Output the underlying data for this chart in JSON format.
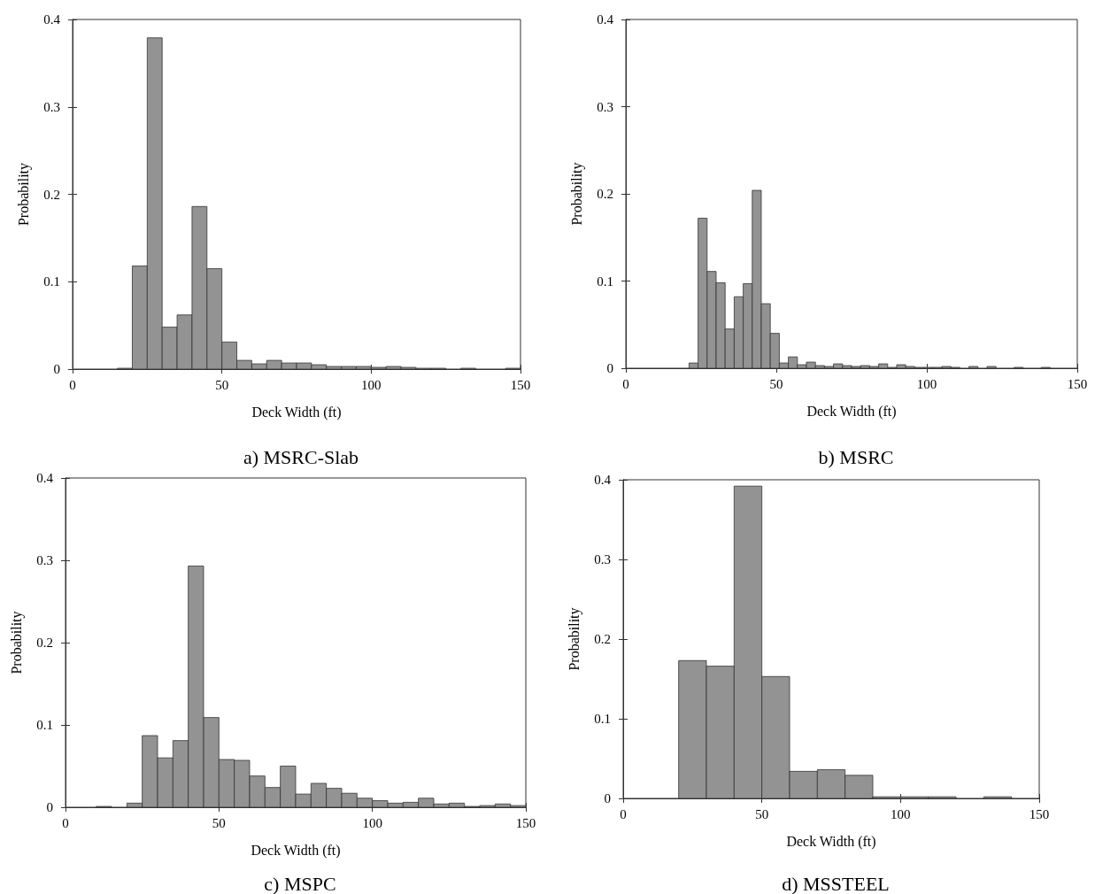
{
  "chart_data": [
    {
      "type": "histogram",
      "title": "a) MSRC-Slab",
      "xlabel": "Deck Width (ft)",
      "ylabel": "Probability",
      "color": "#939393",
      "xlim": [
        0,
        150
      ],
      "ylim": [
        0,
        0.4
      ],
      "xticks": [
        0,
        50,
        100,
        150
      ],
      "yticks": [
        0,
        0.1,
        0.2,
        0.3,
        0.4
      ],
      "bins": [
        15,
        20,
        25,
        30,
        35,
        40,
        45,
        50,
        55,
        60,
        65,
        70,
        75,
        80,
        85,
        90,
        95,
        100,
        105,
        110,
        115,
        120,
        125,
        130,
        135,
        140,
        145,
        150
      ],
      "values": [
        0.001,
        0.118,
        0.379,
        0.048,
        0.062,
        0.186,
        0.115,
        0.031,
        0.01,
        0.006,
        0.01,
        0.007,
        0.007,
        0.005,
        0.003,
        0.003,
        0.003,
        0.002,
        0.003,
        0.002,
        0.001,
        0.001,
        0,
        0.001,
        0,
        0,
        0.001
      ]
    },
    {
      "type": "histogram",
      "title": "b) MSRC",
      "xlabel": "Deck Width (ft)",
      "ylabel": "Probability",
      "color": "#939393",
      "xlim": [
        0,
        150
      ],
      "ylim": [
        0,
        0.4
      ],
      "xticks": [
        0,
        50,
        100,
        150
      ],
      "yticks": [
        0,
        0.1,
        0.2,
        0.3,
        0.4
      ],
      "bins": [
        21,
        24,
        27,
        30,
        33,
        36,
        39,
        42,
        45,
        48,
        51,
        54,
        57,
        60,
        63,
        66,
        69,
        72,
        75,
        78,
        81,
        84,
        87,
        90,
        93,
        96,
        99,
        102,
        105,
        108,
        111,
        114,
        117,
        120,
        123,
        126,
        129,
        132,
        135,
        138,
        141
      ],
      "values": [
        0.006,
        0.172,
        0.111,
        0.098,
        0.045,
        0.082,
        0.097,
        0.204,
        0.074,
        0.04,
        0.006,
        0.013,
        0.004,
        0.007,
        0.003,
        0.002,
        0.005,
        0.003,
        0.002,
        0.003,
        0.002,
        0.005,
        0.001,
        0.004,
        0.002,
        0.001,
        0.001,
        0.001,
        0.002,
        0.001,
        0,
        0.002,
        0,
        0.002,
        0,
        0,
        0.001,
        0,
        0,
        0.001
      ]
    },
    {
      "type": "histogram",
      "title": "c) MSPC",
      "xlabel": "Deck Width (ft)",
      "ylabel": "Probability",
      "color": "#939393",
      "xlim": [
        0,
        150
      ],
      "ylim": [
        0,
        0.4
      ],
      "xticks": [
        0,
        50,
        100,
        150
      ],
      "yticks": [
        0,
        0.1,
        0.2,
        0.3,
        0.4
      ],
      "bins": [
        10,
        15,
        20,
        25,
        30,
        35,
        40,
        45,
        50,
        55,
        60,
        65,
        70,
        75,
        80,
        85,
        90,
        95,
        100,
        105,
        110,
        115,
        120,
        125,
        130,
        135,
        140,
        145,
        150
      ],
      "values": [
        0.001,
        0,
        0.005,
        0.087,
        0.06,
        0.081,
        0.293,
        0.109,
        0.058,
        0.057,
        0.038,
        0.024,
        0.05,
        0.016,
        0.029,
        0.023,
        0.017,
        0.011,
        0.008,
        0.005,
        0.006,
        0.011,
        0.004,
        0.005,
        0.001,
        0.002,
        0.004,
        0.002
      ]
    },
    {
      "type": "histogram",
      "title": "d) MSSTEEL",
      "xlabel": "Deck Width (ft)",
      "ylabel": "Probability",
      "color": "#939393",
      "xlim": [
        0,
        150
      ],
      "ylim": [
        0,
        0.4
      ],
      "xticks": [
        0,
        50,
        100,
        150
      ],
      "yticks": [
        0,
        0.1,
        0.2,
        0.3,
        0.4
      ],
      "bins": [
        20,
        30,
        40,
        50,
        60,
        70,
        80,
        90,
        100,
        110,
        120,
        130,
        140
      ],
      "values": [
        0.173,
        0.166,
        0.392,
        0.153,
        0.034,
        0.036,
        0.029,
        0.002,
        0.002,
        0.002,
        0,
        0.002
      ]
    }
  ]
}
